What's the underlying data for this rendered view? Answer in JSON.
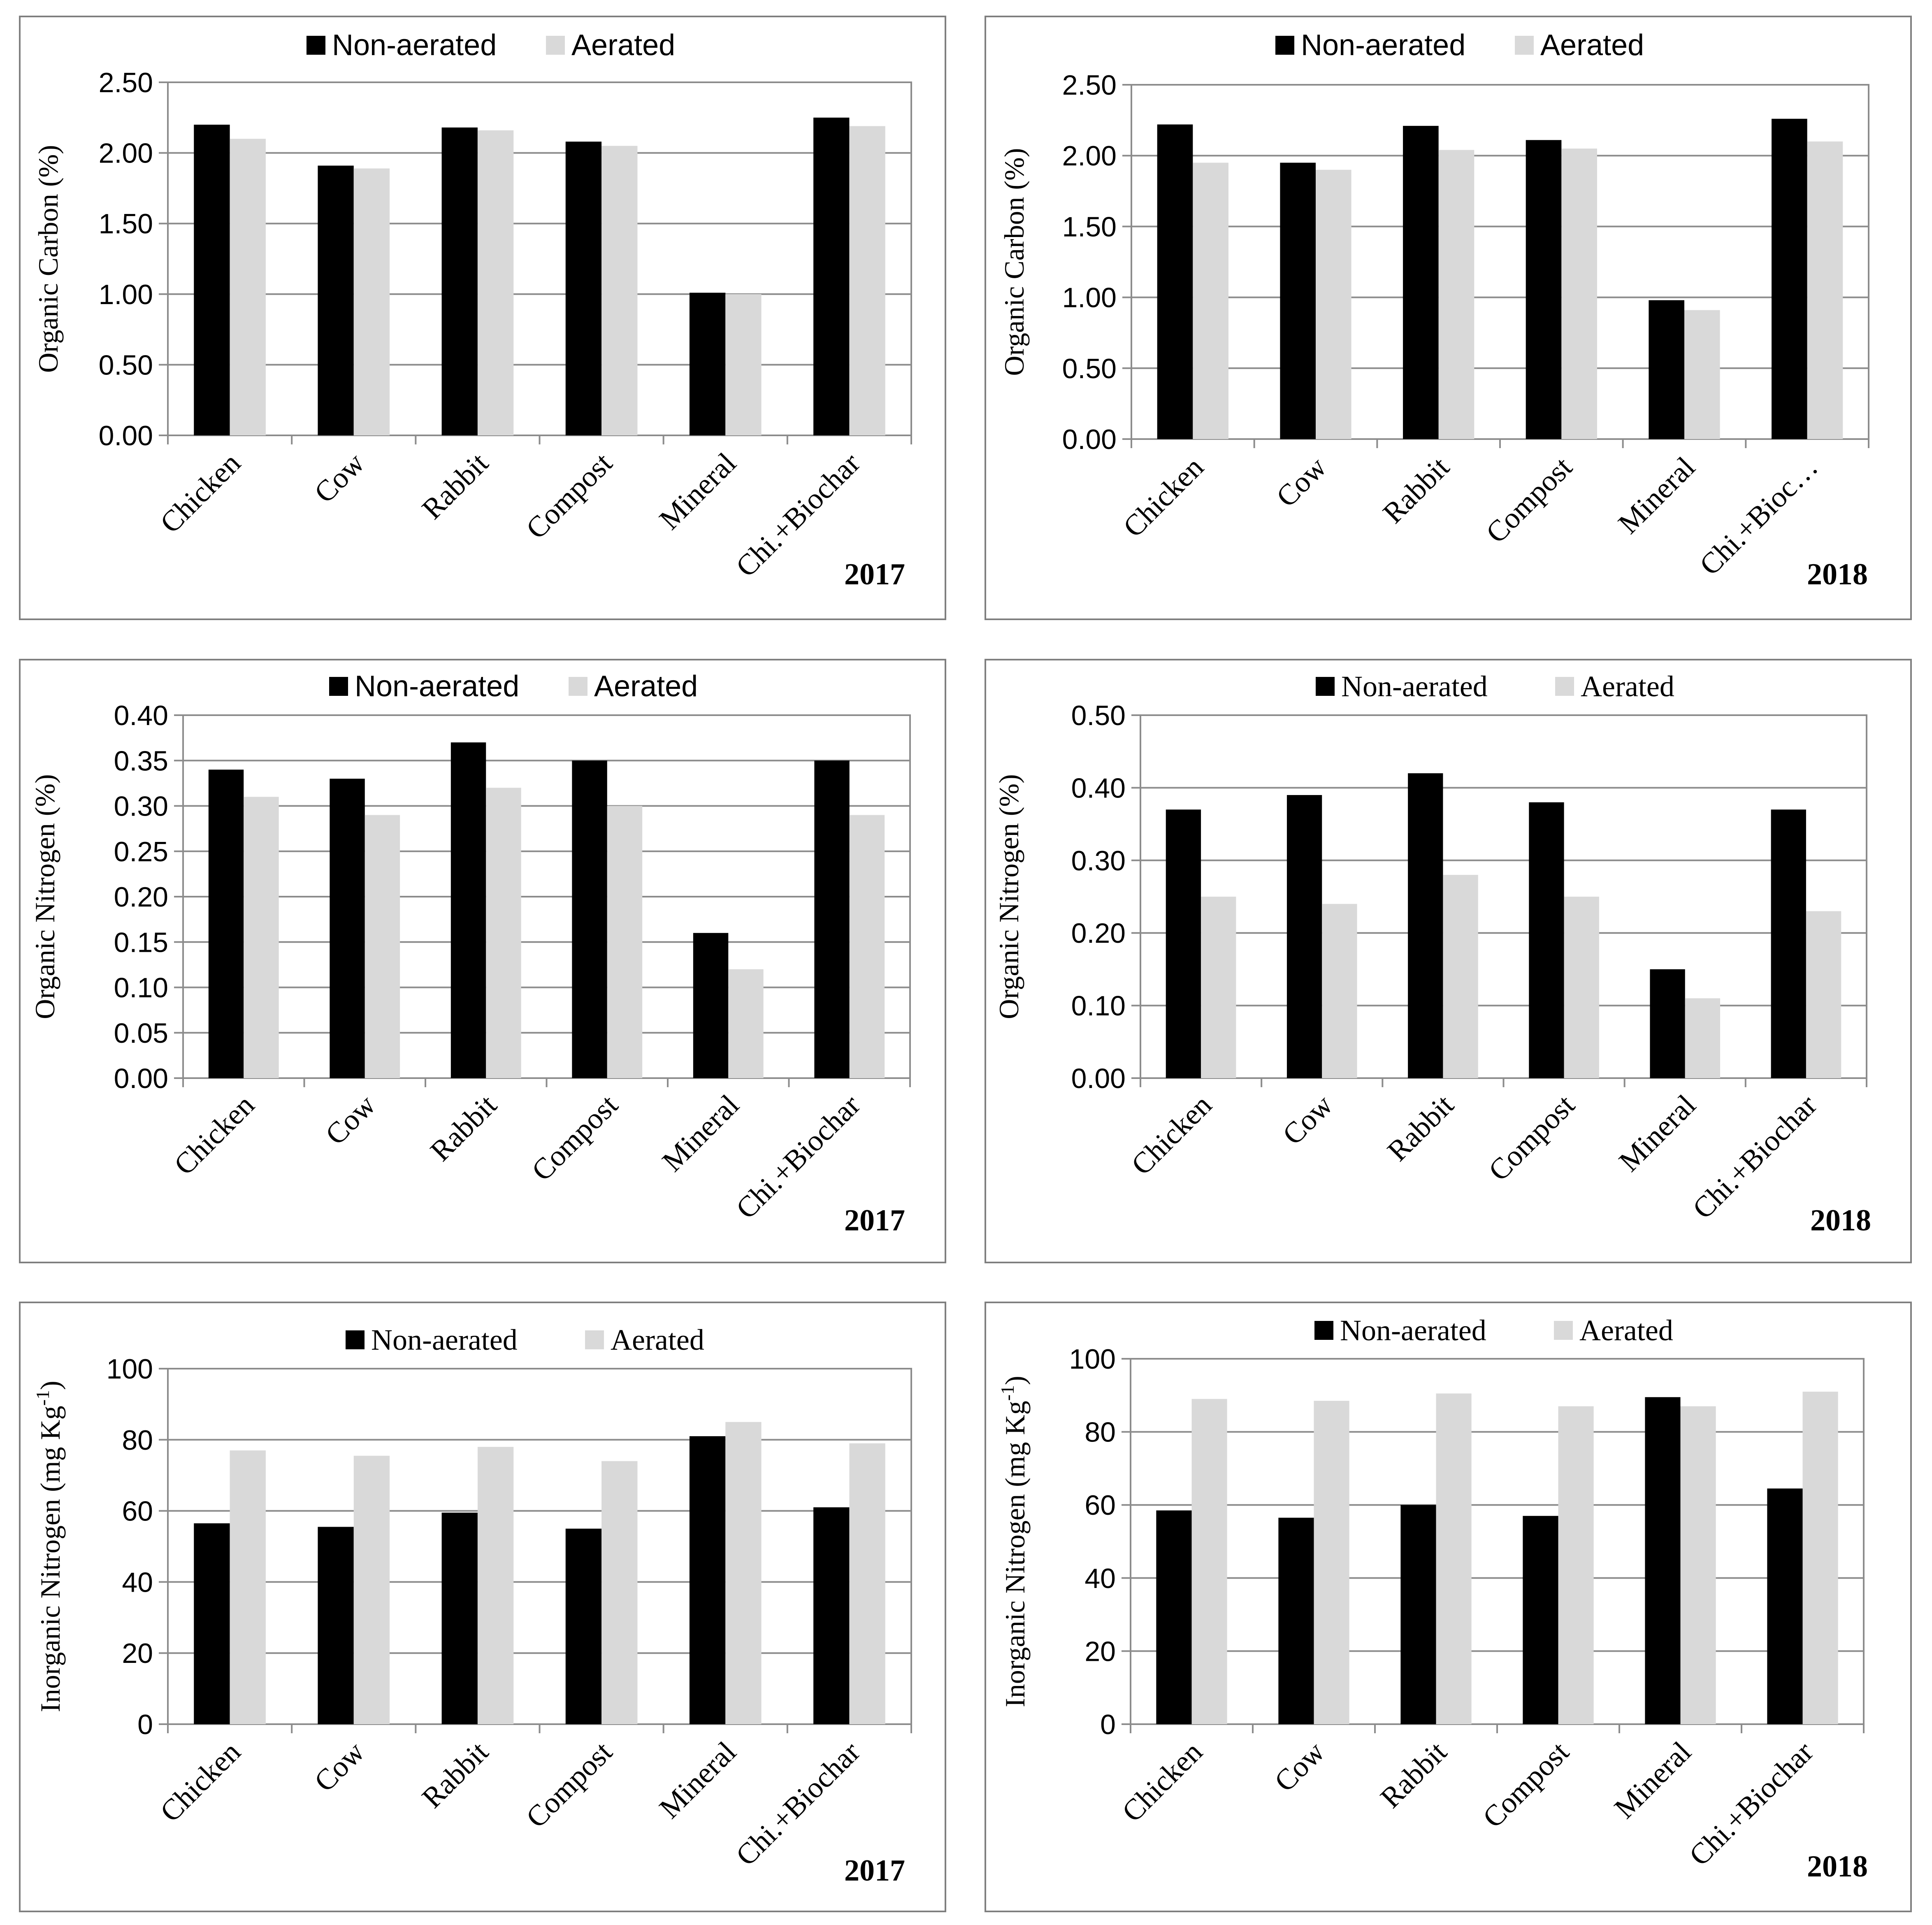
{
  "legend": {
    "non_aerated": "Non-aerated",
    "aerated": "Aerated"
  },
  "colors": {
    "non_aerated": "#000000",
    "aerated": "#d9d9d9",
    "grid": "#8c8c8c",
    "frame": "#7f7f7f"
  },
  "chart_data": [
    {
      "type": "bar",
      "year": "2017",
      "ylabel": "Organic Carbon  (%)",
      "ylabel_sup": "",
      "ylabel_tail": "",
      "legend_font": "sans",
      "legend_position": "top",
      "ylim": [
        0,
        2.5
      ],
      "yticks": [
        "0.00",
        "0.50",
        "1.00",
        "1.50",
        "2.00",
        "2.50"
      ],
      "categories": [
        "Chicken",
        "Cow",
        "Rabbit",
        "Compost",
        "Mineral",
        "Chi.+Biochar"
      ],
      "series": [
        {
          "name": "Non-aerated",
          "values": [
            2.2,
            1.91,
            2.18,
            2.08,
            1.01,
            2.25
          ]
        },
        {
          "name": "Aerated",
          "values": [
            2.1,
            1.89,
            2.16,
            2.05,
            1.0,
            2.19
          ]
        }
      ]
    },
    {
      "type": "bar",
      "year": "2018",
      "ylabel": "Organic Carbon  (%)",
      "ylabel_sup": "",
      "ylabel_tail": "",
      "legend_font": "sans",
      "legend_position": "top",
      "ylim": [
        0,
        2.5
      ],
      "yticks": [
        "0.00",
        "0.50",
        "1.00",
        "1.50",
        "2.00",
        "2.50"
      ],
      "categories": [
        "Chicken",
        "Cow",
        "Rabbit",
        "Compost",
        "Mineral",
        "Chi.+Bioc…"
      ],
      "series": [
        {
          "name": "Non-aerated",
          "values": [
            2.22,
            1.95,
            2.21,
            2.11,
            0.98,
            2.26
          ]
        },
        {
          "name": "Aerated",
          "values": [
            1.95,
            1.9,
            2.04,
            2.05,
            0.91,
            2.1
          ]
        }
      ]
    },
    {
      "type": "bar",
      "year": "2017",
      "ylabel": "Organic Nitrogen  (%)",
      "ylabel_sup": "",
      "ylabel_tail": "",
      "legend_font": "sans",
      "legend_position": "top",
      "ylim": [
        0,
        0.4
      ],
      "yticks": [
        "0.00",
        "0.05",
        "0.10",
        "0.15",
        "0.20",
        "0.25",
        "0.30",
        "0.35",
        "0.40"
      ],
      "categories": [
        "Chicken",
        "Cow",
        "Rabbit",
        "Compost",
        "Mineral",
        "Chi.+Biochar"
      ],
      "series": [
        {
          "name": "Non-aerated",
          "values": [
            0.34,
            0.33,
            0.37,
            0.35,
            0.16,
            0.35
          ]
        },
        {
          "name": "Aerated",
          "values": [
            0.31,
            0.29,
            0.32,
            0.3,
            0.12,
            0.29
          ]
        }
      ]
    },
    {
      "type": "bar",
      "year": "2018",
      "ylabel": "Organic Nitrogen  (%)",
      "ylabel_sup": "",
      "ylabel_tail": "",
      "legend_font": "serif",
      "legend_position": "top",
      "ylim": [
        0,
        0.5
      ],
      "yticks": [
        "0.00",
        "0.10",
        "0.20",
        "0.30",
        "0.40",
        "0.50"
      ],
      "categories": [
        "Chicken",
        "Cow",
        "Rabbit",
        "Compost",
        "Mineral",
        "Chi.+Biochar"
      ],
      "series": [
        {
          "name": "Non-aerated",
          "values": [
            0.37,
            0.39,
            0.42,
            0.38,
            0.15,
            0.37
          ]
        },
        {
          "name": "Aerated",
          "values": [
            0.25,
            0.24,
            0.28,
            0.25,
            0.11,
            0.23
          ]
        }
      ]
    },
    {
      "type": "bar",
      "year": "2017",
      "ylabel": "Inorganic Nitrogen  (mg Kg",
      "ylabel_sup": "-1",
      "ylabel_tail": ")",
      "legend_font": "serif",
      "legend_position": "top",
      "ylim": [
        0,
        100
      ],
      "yticks": [
        "0",
        "20",
        "40",
        "60",
        "80",
        "100"
      ],
      "categories": [
        "Chicken",
        "Cow",
        "Rabbit",
        "Compost",
        "Mineral",
        "Chi.+Biochar"
      ],
      "series": [
        {
          "name": "Non-aerated",
          "values": [
            56.5,
            55.5,
            59.5,
            55,
            81,
            61
          ]
        },
        {
          "name": "Aerated",
          "values": [
            77,
            75.5,
            78,
            74,
            85,
            79
          ]
        }
      ]
    },
    {
      "type": "bar",
      "year": "2018",
      "ylabel": "Inorganic Nitrogen  (mg Kg",
      "ylabel_sup": "-1",
      "ylabel_tail": ")",
      "legend_font": "serif",
      "legend_position": "top",
      "ylim": [
        0,
        100
      ],
      "yticks": [
        "0",
        "20",
        "40",
        "60",
        "80",
        "100"
      ],
      "categories": [
        "Chicken",
        "Cow",
        "Rabbit",
        "Compost",
        "Mineral",
        "Chi.+Biochar"
      ],
      "series": [
        {
          "name": "Non-aerated",
          "values": [
            58.5,
            56.5,
            60,
            57,
            89.5,
            64.5
          ]
        },
        {
          "name": "Aerated",
          "values": [
            89,
            88.5,
            90.5,
            87,
            87,
            91
          ]
        }
      ]
    }
  ]
}
